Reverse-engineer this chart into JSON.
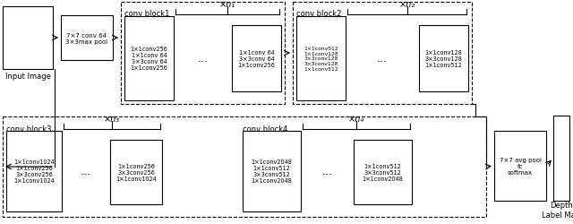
{
  "fig_width": 6.4,
  "fig_height": 2.51,
  "dpi": 100,
  "bg_color": "#ffffff",
  "input_label": "Input Image",
  "depth_label": "Depth\nLabel Map",
  "stem_text": "7×7 conv 64\n3×3max pool",
  "cb1_label": "conv block1",
  "cb1_n": "×n₁",
  "cb1_first": "1×1conv256\n1×1conv 64\n3×3conv 64\n1×1conv256",
  "cb1_repeat": "1×1conv 64\n3×3conv 64\n1×1conv256",
  "cb2_label": "conv block2",
  "cb2_n": "×n₂",
  "cb2_first": "1×1conv512\n1×1conv128\n3×3conv128\n3×3conv128\n1×1conv512",
  "cb2_repeat": "1×1conv128\n3×3conv128\n1×1conv512",
  "cb3_label": "conv block3",
  "cb3_n": "×n₃",
  "cb3_first": "1×1conv1024\n1×1conv256\n3×3conv256\n1×1conv1024",
  "cb3_repeat": "1×1conv256\n3×3conv256\n1×1conv1024",
  "cb4_label": "conv block4",
  "cb4_n": "×n₄",
  "cb4_first": "1×1conv2048\n1×1conv512\n3×3conv512\n1×1conv2048",
  "cb4_repeat": "1×1conv512\n3×3conv512\n1×1conv2048",
  "final_text": "7×7 avg pool\nfc\nsoftmax",
  "fs": 5.0,
  "fs_label": 6.0,
  "fs_n": 7.0
}
